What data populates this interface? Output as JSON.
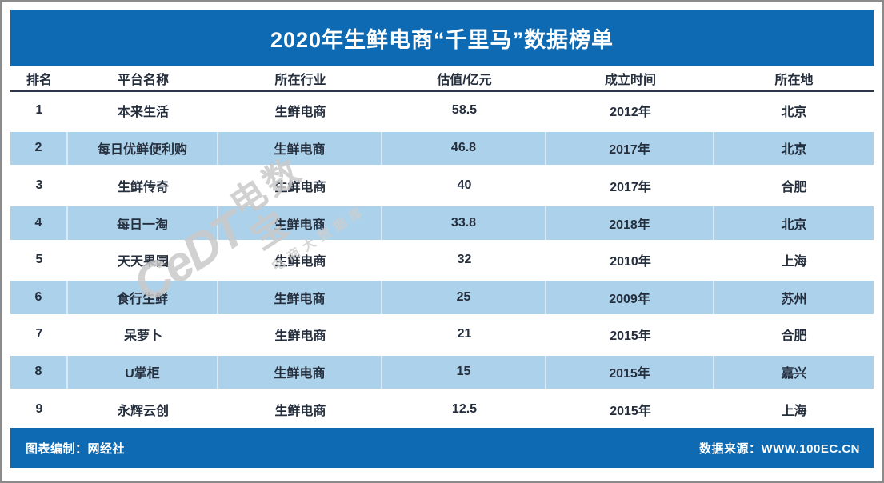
{
  "title": "2020年生鲜电商“千里马”数据榜单",
  "chart_data": {
    "type": "table",
    "title": "2020年生鲜电商“千里马”数据榜单",
    "columns": [
      "排名",
      "平台名称",
      "所在行业",
      "估值/亿元",
      "成立时间",
      "所在地"
    ],
    "rows": [
      [
        "1",
        "本来生活",
        "生鲜电商",
        "58.5",
        "2012年",
        "北京"
      ],
      [
        "2",
        "每日优鲜便利购",
        "生鲜电商",
        "46.8",
        "2017年",
        "北京"
      ],
      [
        "3",
        "生鲜传奇",
        "生鲜电商",
        "40",
        "2017年",
        "合肥"
      ],
      [
        "4",
        "每日一淘",
        "生鲜电商",
        "33.8",
        "2018年",
        "北京"
      ],
      [
        "5",
        "天天果园",
        "生鲜电商",
        "32",
        "2010年",
        "上海"
      ],
      [
        "6",
        "食行生鲜",
        "生鲜电商",
        "25",
        "2009年",
        "苏州"
      ],
      [
        "7",
        "呆萝卜",
        "生鲜电商",
        "21",
        "2015年",
        "合肥"
      ],
      [
        "8",
        "U掌柜",
        "生鲜电商",
        "15",
        "2015年",
        "嘉兴"
      ],
      [
        "9",
        "永辉云创",
        "生鲜电商",
        "12.5",
        "2015年",
        "上海"
      ]
    ],
    "layout": {
      "alt_row_style": "light-blue stripes on even ranks",
      "legend": "none",
      "grid": "off"
    }
  },
  "footer": {
    "left": "图表编制：网经社",
    "right": "数据来源：WWW.100EC.CN"
  },
  "watermark": {
    "logo": "CeDT",
    "name": "电数宝",
    "subtitle": "电商大数据库"
  },
  "colors": {
    "primary_blue": "#0d6ab3",
    "alt_row_blue": "#acd1ea",
    "text_dark": "#252e3d",
    "title_text": "#ffffff",
    "watermark_gray": "#c9c9c9",
    "outer_border": "#8b8b8b"
  }
}
